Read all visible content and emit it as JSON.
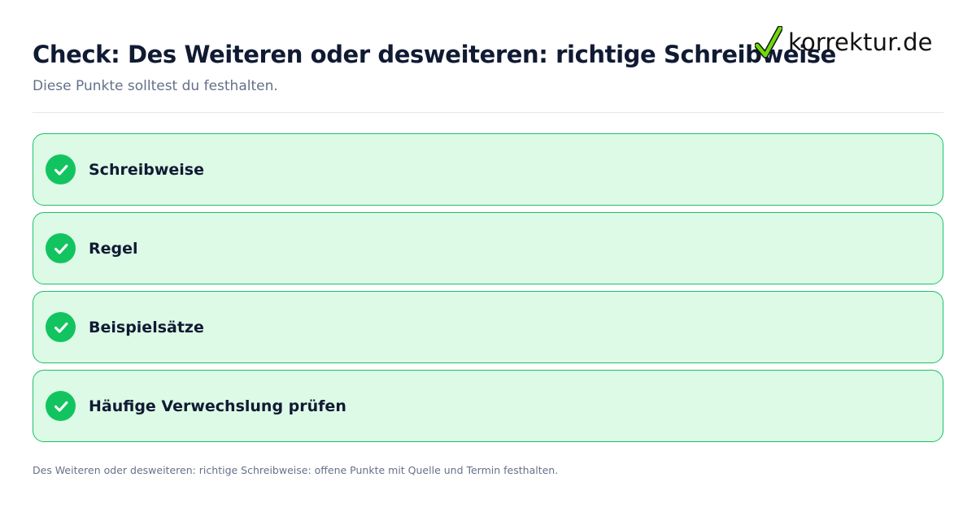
{
  "header": {
    "title": "Check: Des Weiteren oder desweiteren: richtige Schreibweise",
    "subtitle": "Diese Punkte solltest du festhalten."
  },
  "logo": {
    "text": "korrektur.de",
    "icon": "checkmark-icon"
  },
  "checklist": {
    "items": [
      {
        "label": "Schreibweise",
        "icon": "check-circle-icon"
      },
      {
        "label": "Regel",
        "icon": "check-circle-icon"
      },
      {
        "label": "Beispielsätze",
        "icon": "check-circle-icon"
      },
      {
        "label": "Häufige Verwechslung prüfen",
        "icon": "check-circle-icon"
      }
    ]
  },
  "footer": {
    "note": "Des Weiteren oder desweiteren: richtige Schreibweise: offene Punkte mit Quelle und Termin festhalten."
  },
  "colors": {
    "title": "#111a33",
    "subtitle": "#64708a",
    "item_background": "#dcfae6",
    "item_border": "#1fbe68",
    "check_accent": "#12c45f",
    "logo_check": "#6fd90f"
  }
}
